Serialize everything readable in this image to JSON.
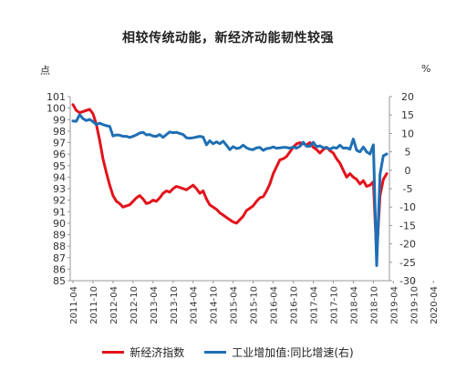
{
  "chart_data": {
    "type": "line",
    "title": "相较传统动能，新经济动能韧性较强",
    "left_axis": {
      "unit": "点",
      "ylim": [
        85,
        101
      ],
      "ticks": [
        85,
        86,
        87,
        88,
        89,
        90,
        91,
        92,
        93,
        94,
        95,
        96,
        97,
        98,
        99,
        100,
        101
      ]
    },
    "right_axis": {
      "unit": "%",
      "ylim": [
        -30,
        20
      ],
      "ticks": [
        -30,
        -25,
        -20,
        -15,
        -10,
        -5,
        0,
        5,
        10,
        15,
        20
      ]
    },
    "x_ticks": [
      "2011-04",
      "2011-10",
      "2012-04",
      "2012-10",
      "2013-04",
      "2013-10",
      "2014-04",
      "2014-10",
      "2015-04",
      "2015-10",
      "2016-04",
      "2016-10",
      "2017-04",
      "2017-10",
      "2018-04",
      "2018-10",
      "2019-04",
      "2019-10",
      "2020-04"
    ],
    "grid": false,
    "legend_position": "bottom",
    "series": [
      {
        "name": "新经济指数",
        "axis": "left",
        "color": "#e3121b",
        "values": [
          [
            0,
            100.3
          ],
          [
            1,
            99.8
          ],
          [
            2,
            99.6
          ],
          [
            3,
            99.7
          ],
          [
            4,
            99.8
          ],
          [
            5,
            99.9
          ],
          [
            6,
            99.5
          ],
          [
            7,
            98.6
          ],
          [
            8,
            97.2
          ],
          [
            9,
            95.6
          ],
          [
            10,
            94.4
          ],
          [
            11,
            93.3
          ],
          [
            12,
            92.4
          ],
          [
            13,
            91.9
          ],
          [
            14,
            91.7
          ],
          [
            15,
            91.4
          ],
          [
            16,
            91.5
          ],
          [
            17,
            91.6
          ],
          [
            18,
            91.9
          ],
          [
            19,
            92.2
          ],
          [
            20,
            92.4
          ],
          [
            21,
            92.1
          ],
          [
            22,
            91.7
          ],
          [
            23,
            91.8
          ],
          [
            24,
            92.0
          ],
          [
            25,
            91.9
          ],
          [
            26,
            92.2
          ],
          [
            27,
            92.6
          ],
          [
            28,
            92.8
          ],
          [
            29,
            92.7
          ],
          [
            30,
            93.0
          ],
          [
            31,
            93.2
          ],
          [
            32,
            93.1
          ],
          [
            33,
            93.0
          ],
          [
            34,
            92.9
          ],
          [
            35,
            93.1
          ],
          [
            36,
            93.3
          ],
          [
            37,
            93.0
          ],
          [
            38,
            92.6
          ],
          [
            39,
            92.8
          ],
          [
            40,
            92.1
          ],
          [
            41,
            91.6
          ],
          [
            42,
            91.4
          ],
          [
            43,
            91.2
          ],
          [
            44,
            90.9
          ],
          [
            45,
            90.7
          ],
          [
            46,
            90.5
          ],
          [
            47,
            90.3
          ],
          [
            48,
            90.1
          ],
          [
            49,
            90.0
          ],
          [
            50,
            90.3
          ],
          [
            51,
            90.6
          ],
          [
            52,
            91.1
          ],
          [
            53,
            91.3
          ],
          [
            54,
            91.5
          ],
          [
            55,
            91.9
          ],
          [
            56,
            92.2
          ],
          [
            57,
            92.3
          ],
          [
            58,
            92.8
          ],
          [
            59,
            93.4
          ],
          [
            60,
            94.3
          ],
          [
            61,
            94.9
          ],
          [
            62,
            95.5
          ],
          [
            63,
            95.6
          ],
          [
            64,
            95.8
          ],
          [
            65,
            96.2
          ],
          [
            66,
            96.6
          ],
          [
            67,
            96.9
          ],
          [
            68,
            97.0
          ],
          [
            69,
            96.9
          ],
          [
            70,
            96.8
          ],
          [
            71,
            97.0
          ],
          [
            72,
            96.6
          ],
          [
            73,
            96.4
          ],
          [
            74,
            96.1
          ],
          [
            75,
            96.4
          ],
          [
            76,
            96.6
          ],
          [
            77,
            96.3
          ],
          [
            78,
            96.1
          ],
          [
            79,
            95.6
          ],
          [
            80,
            95.2
          ],
          [
            81,
            94.6
          ],
          [
            82,
            94.0
          ],
          [
            83,
            94.3
          ],
          [
            84,
            94.0
          ],
          [
            85,
            93.8
          ],
          [
            86,
            93.4
          ],
          [
            87,
            93.7
          ],
          [
            88,
            93.2
          ],
          [
            89,
            93.3
          ],
          [
            90,
            93.6
          ],
          [
            91,
            87.3
          ],
          [
            92,
            92.4
          ],
          [
            93,
            93.8
          ],
          [
            94,
            94.3
          ]
        ]
      },
      {
        "name": "工业增加值:同比增速(右)",
        "axis": "right",
        "color": "#1f6fb4",
        "values": [
          [
            0,
            13.4
          ],
          [
            1,
            13.3
          ],
          [
            2,
            15.1
          ],
          [
            3,
            14.0
          ],
          [
            4,
            13.5
          ],
          [
            5,
            13.8
          ],
          [
            6,
            13.2
          ],
          [
            7,
            12.4
          ],
          [
            8,
            12.8
          ],
          [
            9,
            12.4
          ],
          [
            10,
            12.1
          ],
          [
            11,
            11.9
          ],
          [
            12,
            9.3
          ],
          [
            13,
            9.6
          ],
          [
            14,
            9.5
          ],
          [
            15,
            9.2
          ],
          [
            16,
            9.2
          ],
          [
            17,
            8.9
          ],
          [
            18,
            9.2
          ],
          [
            19,
            9.6
          ],
          [
            20,
            10.1
          ],
          [
            21,
            10.3
          ],
          [
            22,
            9.6
          ],
          [
            23,
            9.7
          ],
          [
            24,
            9.3
          ],
          [
            25,
            9.2
          ],
          [
            26,
            9.7
          ],
          [
            27,
            8.9
          ],
          [
            28,
            9.7
          ],
          [
            29,
            10.4
          ],
          [
            30,
            10.2
          ],
          [
            31,
            10.3
          ],
          [
            32,
            10.0
          ],
          [
            33,
            9.7
          ],
          [
            34,
            8.8
          ],
          [
            35,
            8.7
          ],
          [
            36,
            8.8
          ],
          [
            37,
            9.0
          ],
          [
            38,
            9.2
          ],
          [
            39,
            9.0
          ],
          [
            40,
            6.9
          ],
          [
            41,
            8.0
          ],
          [
            42,
            7.2
          ],
          [
            43,
            7.7
          ],
          [
            44,
            7.2
          ],
          [
            45,
            7.9
          ],
          [
            46,
            6.8
          ],
          [
            47,
            5.6
          ],
          [
            48,
            6.4
          ],
          [
            49,
            5.9
          ],
          [
            50,
            6.1
          ],
          [
            51,
            6.8
          ],
          [
            52,
            6.1
          ],
          [
            53,
            5.7
          ],
          [
            54,
            5.6
          ],
          [
            55,
            6.1
          ],
          [
            56,
            6.2
          ],
          [
            57,
            5.4
          ],
          [
            58,
            5.9
          ],
          [
            59,
            6.0
          ],
          [
            60,
            6.3
          ],
          [
            61,
            6.0
          ],
          [
            62,
            6.1
          ],
          [
            63,
            6.2
          ],
          [
            64,
            6.2
          ],
          [
            65,
            6.0
          ],
          [
            66,
            6.3
          ],
          [
            67,
            6.0
          ],
          [
            68,
            6.5
          ],
          [
            69,
            7.6
          ],
          [
            70,
            6.5
          ],
          [
            71,
            6.5
          ],
          [
            72,
            7.6
          ],
          [
            73,
            6.4
          ],
          [
            74,
            6.6
          ],
          [
            75,
            6.1
          ],
          [
            76,
            6.2
          ],
          [
            77,
            5.7
          ],
          [
            78,
            6.2
          ],
          [
            79,
            6.0
          ],
          [
            80,
            6.8
          ],
          [
            81,
            6.0
          ],
          [
            82,
            6.1
          ],
          [
            83,
            5.7
          ],
          [
            84,
            8.5
          ],
          [
            85,
            5.4
          ],
          [
            86,
            5.0
          ],
          [
            87,
            6.3
          ],
          [
            88,
            5.0
          ],
          [
            89,
            4.4
          ],
          [
            90,
            6.9
          ],
          [
            91,
            -25.9
          ],
          [
            92,
            -1.1
          ],
          [
            93,
            3.9
          ],
          [
            94,
            4.4
          ]
        ]
      }
    ]
  }
}
